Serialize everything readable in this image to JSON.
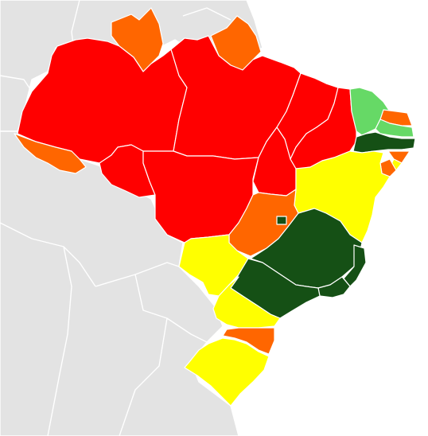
{
  "map": {
    "colors": {
      "neighbor": "#e3e3e3",
      "red": "#ff0000",
      "orange": "#ff6600",
      "yellow": "#ffff00",
      "light_green": "#66d966",
      "dark_green": "#155015",
      "border": "#ffffff",
      "background": "#ffffff"
    },
    "regions": [
      {
        "id": "AM",
        "color": "red"
      },
      {
        "id": "PA",
        "color": "red"
      },
      {
        "id": "MT",
        "color": "red"
      },
      {
        "id": "RO",
        "color": "red"
      },
      {
        "id": "TO",
        "color": "red"
      },
      {
        "id": "MA",
        "color": "red"
      },
      {
        "id": "PI",
        "color": "red"
      },
      {
        "id": "RR",
        "color": "orange"
      },
      {
        "id": "AP",
        "color": "orange"
      },
      {
        "id": "AC",
        "color": "orange"
      },
      {
        "id": "GO",
        "color": "orange"
      },
      {
        "id": "SC",
        "color": "orange"
      },
      {
        "id": "RN",
        "color": "orange"
      },
      {
        "id": "AL",
        "color": "orange"
      },
      {
        "id": "CE",
        "color": "light_green"
      },
      {
        "id": "PB",
        "color": "light_green"
      },
      {
        "id": "PE",
        "color": "dark_green"
      },
      {
        "id": "MG",
        "color": "dark_green"
      },
      {
        "id": "SP",
        "color": "dark_green"
      },
      {
        "id": "RJ",
        "color": "dark_green"
      },
      {
        "id": "ES",
        "color": "dark_green"
      },
      {
        "id": "DF",
        "color": "dark_green"
      },
      {
        "id": "BA",
        "color": "yellow"
      },
      {
        "id": "MS",
        "color": "yellow"
      },
      {
        "id": "PR",
        "color": "yellow"
      },
      {
        "id": "RS",
        "color": "yellow"
      },
      {
        "id": "SE",
        "color": "yellow"
      }
    ]
  }
}
